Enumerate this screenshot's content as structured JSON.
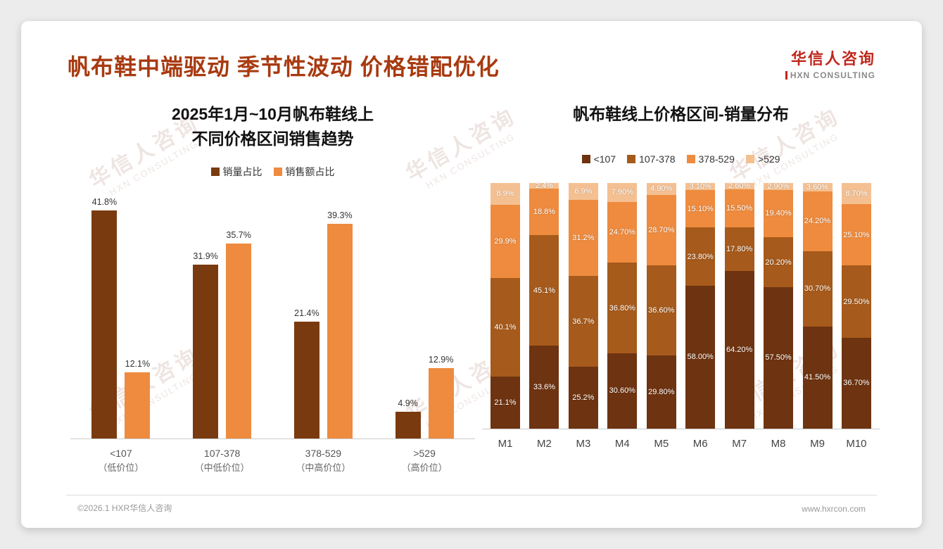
{
  "header": {
    "title": "帆布鞋中端驱动 季节性波动 价格错配优化",
    "logo_cn": "华信人咨询",
    "logo_en": "HXN CONSULTING"
  },
  "watermark": {
    "cn": "华信人咨询",
    "en": "HXN CONSULTING"
  },
  "footer": {
    "left": "©2026.1 HXR华信人咨询",
    "right": "www.hxrcon.com"
  },
  "colors": {
    "title": "#a83a10",
    "axis": "#c9c9c9"
  },
  "chart_data": [
    {
      "type": "bar",
      "title_lines": [
        "2025年1月~10月帆布鞋线上",
        "不同价格区间销售趋势"
      ],
      "categories": [
        "<107",
        "107-378",
        "378-529",
        ">529"
      ],
      "category_subs": [
        "（低价位）",
        "（中低价位）",
        "（中高价位）",
        "（高价位）"
      ],
      "series": [
        {
          "name": "销量占比",
          "color": "#7a3a0f",
          "values": [
            41.8,
            31.9,
            21.4,
            4.9
          ],
          "labels": [
            "41.8%",
            "31.9%",
            "21.4%",
            "4.9%"
          ]
        },
        {
          "name": "销售额占比",
          "color": "#ee8b3e",
          "values": [
            12.1,
            35.7,
            39.3,
            12.9
          ],
          "labels": [
            "12.1%",
            "35.7%",
            "39.3%",
            "12.9%"
          ]
        }
      ],
      "ylim": [
        0,
        45
      ],
      "legend_position": "top",
      "grid": false
    },
    {
      "type": "stacked-bar",
      "title": "帆布鞋线上价格区间-销量分布",
      "categories": [
        "M1",
        "M2",
        "M3",
        "M4",
        "M5",
        "M6",
        "M7",
        "M8",
        "M9",
        "M10"
      ],
      "series": [
        {
          "name": "<107",
          "color": "#6e3310",
          "values": [
            21.1,
            33.6,
            25.2,
            30.6,
            29.8,
            58.0,
            64.2,
            57.5,
            41.5,
            36.7
          ],
          "labels": [
            "21.1%",
            "33.6%",
            "25.2%",
            "30.60%",
            "29.80%",
            "58.00%",
            "64.20%",
            "57.50%",
            "41.50%",
            "36.70%"
          ]
        },
        {
          "name": "107-378",
          "color": "#a65a1b",
          "values": [
            40.1,
            45.1,
            36.7,
            36.8,
            36.6,
            23.8,
            17.8,
            20.2,
            30.7,
            29.5
          ],
          "labels": [
            "40.1%",
            "45.1%",
            "36.7%",
            "36.80%",
            "36.60%",
            "23.80%",
            "17.80%",
            "20.20%",
            "30.70%",
            "29.50%"
          ]
        },
        {
          "name": "378-529",
          "color": "#ee8b3e",
          "values": [
            29.9,
            18.8,
            31.2,
            24.7,
            28.7,
            15.1,
            15.5,
            19.4,
            24.2,
            25.1
          ],
          "labels": [
            "29.9%",
            "18.8%",
            "31.2%",
            "24.70%",
            "28.70%",
            "15.10%",
            "15.50%",
            "19.40%",
            "24.20%",
            "25.10%"
          ]
        },
        {
          "name": ">529",
          "color": "#f4c092",
          "values": [
            8.9,
            2.4,
            6.9,
            7.9,
            4.9,
            3.1,
            2.6,
            2.9,
            3.6,
            8.7
          ],
          "labels": [
            "8.9%",
            "2.4%",
            "6.9%",
            "7.90%",
            "4.90%",
            "3.10%",
            "2.60%",
            "2.90%",
            "3.60%",
            "8.70%"
          ]
        }
      ],
      "ylim": [
        0,
        100
      ],
      "legend_position": "top",
      "grid": false
    }
  ]
}
